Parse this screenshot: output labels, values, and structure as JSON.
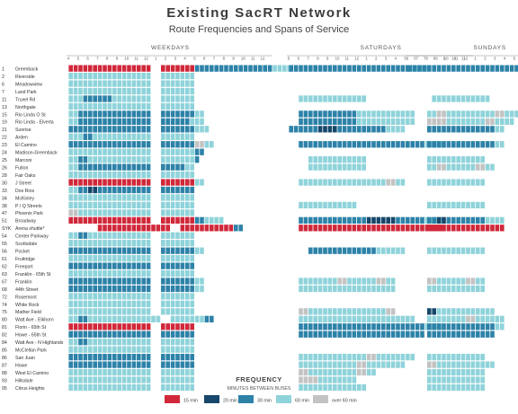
{
  "header": {
    "title": "Existing SacRT Network",
    "subtitle": "Route Frequencies and Spans of Service"
  },
  "colors": {
    "15": "#d0283a",
    "20": "#17476b",
    "30": "#2d82a8",
    "60": "#8fd3da",
    "ovr": "#c3c3c3"
  },
  "chart_data": {
    "type": "heatmap",
    "title": "Existing SacRT Network",
    "subtitle": "Route Frequencies and Spans of Service",
    "panels": [
      {
        "name": "WEEKDAYS",
        "hours": [
          "4",
          "5",
          "6",
          "7",
          "8",
          "9",
          "10",
          "11",
          "12",
          "1",
          "2",
          "3",
          "4",
          "5",
          "6",
          "7",
          "8",
          "9",
          "10",
          "11",
          "12"
        ]
      },
      {
        "name": "SATURDAYS",
        "hours": [
          "5",
          "6",
          "7",
          "8",
          "9",
          "10",
          "11",
          "12",
          "1",
          "2",
          "3",
          "4",
          "5",
          "6",
          "7",
          "8",
          "9",
          "10",
          "11"
        ]
      },
      {
        "name": "SUNDAYS",
        "hours": [
          "6",
          "7",
          "8",
          "9",
          "10",
          "11",
          "12",
          "1",
          "2",
          "3",
          "4",
          "5",
          "6",
          "7",
          "8",
          "9",
          "10"
        ]
      }
    ],
    "routes": [
      {
        "num": "1",
        "name": "Greenback",
        "wd": "8.5:15 1 3.5:15 2.5:30 5.5:30 2:60",
        "sa": "6.5:30 6:30 2:60",
        "su": "6:30 7:30 1:60"
      },
      {
        "num": "2",
        "name": "Riverside",
        "wd": "8.5:60 1 3.5:60",
        "sa": "",
        "su": ""
      },
      {
        "num": "6",
        "name": "Meadowview",
        "wd": "8.5:60 1 3.5:60",
        "sa": "",
        "su": ""
      },
      {
        "num": "7",
        "name": "Land Park",
        "wd": "8.5:60 1 3.5:60",
        "sa": "",
        "su": ""
      },
      {
        "num": "11",
        "name": "Truxel Rd",
        "wd": "1.5:60 3:30 4:60 1 3.5:60",
        "sa": "1 7:60",
        "su": "2.5 6:60"
      },
      {
        "num": "13",
        "name": "Northgate",
        "wd": "8.5:60 1 3.5:60",
        "sa": "",
        "su": ""
      },
      {
        "num": "15",
        "name": "Rio Linda O St",
        "wd": "1:60 7.5:30 1 3.5:30 1:60",
        "sa": "1 6:30 6:60",
        "su": "2 1:60 1:ovr 5:60 1:ovr 2:60"
      },
      {
        "num": "19",
        "name": "Rio Linda - Elverta",
        "wd": "1:60 7.5:30 1 3:30 0.5:60 1:60",
        "sa": "1 6:30 6:60",
        "su": "2 2:ovr 4:60 1:ovr 2:60"
      },
      {
        "num": "21",
        "name": "Sunrise",
        "wd": "8.5:30 1 3.5:30 1.5:60",
        "sa": "3:30 2:20 3:30 2:30 2:60",
        "su": "2 7:30 1:60"
      },
      {
        "num": "22",
        "name": "Arden",
        "wd": "1.5:60 1:30 6:60 1 3.5:60",
        "sa": "",
        "su": ""
      },
      {
        "num": "23",
        "name": "El Camino",
        "wd": "8.5:30 1 3.5:30 1:ovr 1:60",
        "sa": "1 7:30 6:30 2:60",
        "su": "2 7:30 1:60"
      },
      {
        "num": "24",
        "name": "Madison-Greenback",
        "wd": "8.5:60 1 3.5:60 1:30",
        "sa": "",
        "su": ""
      },
      {
        "num": "25",
        "name": "Marconi",
        "wd": "1:60 1:30 6.5:60 1 3.5:60 0.5:30",
        "sa": "2 6:60",
        "su": "2 6:60"
      },
      {
        "num": "26",
        "name": "Fulton",
        "wd": "1:60 7.5:30 1 2.5:30 1:60",
        "sa": "2 6:60",
        "su": "2 1:60 1:ovr 3:60 1:ovr 1:60"
      },
      {
        "num": "28",
        "name": "Fair Oaks",
        "wd": "1:60 7.5:60 1 3.5:60",
        "sa": "",
        "su": ""
      },
      {
        "num": "30",
        "name": "J Street",
        "wd": "8.5:15 1 3.5:15 1:60",
        "sa": "1 4:60 5:60 1:ovr 1:60",
        "su": "2 6:60"
      },
      {
        "num": "33",
        "name": "Dos Rios",
        "wd": "1:60 1:30 1:20 5.5:30 1 3.5:30",
        "sa": "",
        "su": ""
      },
      {
        "num": "34",
        "name": "McKinley",
        "wd": "8.5:60 1 3.5:60",
        "sa": "",
        "su": ""
      },
      {
        "num": "38",
        "name": "P / Q Streets",
        "wd": "1:60 7.5:60 1 3.5:60",
        "sa": "1 4:60 2:60",
        "su": "2 6:60"
      },
      {
        "num": "47",
        "name": "Phoenix Park",
        "wd": "1:ovr 7.5:60 1 3.5:60",
        "sa": "",
        "su": ""
      },
      {
        "num": "51",
        "name": "Broadway",
        "wd": "8.5:15 1 3.5:15 1:30 2:60",
        "sa": "1 7:30 1:20 2:20 3:30 2:60",
        "su": "2 1:30 1:20 2:30 2:30 2:60"
      },
      {
        "num": "SYK",
        "name": "Arena shuttle*",
        "wd": "3 5.5:15 2:15 1 5.5:15 1:30",
        "sa": "1 7:15 6:15 2:15",
        "su": "2 6:15 2:15"
      },
      {
        "num": "54",
        "name": "Center Parkway",
        "wd": "1:60 1:30 6.5:60 1 3.5:60",
        "sa": "",
        "su": ""
      },
      {
        "num": "55",
        "name": "Scottsdale",
        "wd": "8.5:60 1 3.5:60",
        "sa": "",
        "su": ""
      },
      {
        "num": "56",
        "name": "Pocket",
        "wd": "8.5:30 1 3.5:30 1:60",
        "sa": "2 7:30 3:60",
        "su": "2 6:60"
      },
      {
        "num": "61",
        "name": "Fruitridge",
        "wd": "8.5:60 1 3.5:60",
        "sa": "",
        "su": ""
      },
      {
        "num": "62",
        "name": "Freeport",
        "wd": "8.5:30 1 3.5:30",
        "sa": "",
        "su": ""
      },
      {
        "num": "63",
        "name": "Franklin - 65th St",
        "wd": "8.5:60 1 3.5:60",
        "sa": "",
        "su": ""
      },
      {
        "num": "67",
        "name": "Franklin",
        "wd": "8.5:30 1 3.5:30 1:60",
        "sa": "1 4:60 1:ovr 3:60 1:ovr 1:60",
        "su": "2 1:ovr 3:60 1:ovr 1:60"
      },
      {
        "num": "68",
        "name": "44th Street",
        "wd": "8.5:30 1 3.5:30 1:60",
        "sa": "1 4:60 4:60 2:60",
        "su": "2 6:60"
      },
      {
        "num": "72",
        "name": "Rosemont",
        "wd": "8.5:60 1 3.5:60",
        "sa": "",
        "su": ""
      },
      {
        "num": "74",
        "name": "White Rock",
        "wd": "1:60 7.5:60 1 3.5:60",
        "sa": "",
        "su": ""
      },
      {
        "num": "75",
        "name": "Mather Field",
        "wd": "8.5:60 1 3.5:60",
        "sa": "1 1:ovr 4:60 4:60 1:ovr",
        "su": "2 1:20 6:60"
      },
      {
        "num": "80",
        "name": "Watt Ave - Elkhorn",
        "wd": "1:60 1:30 7.5:60 1 3.5:60 1:30",
        "sa": "1 6:60 6:60",
        "su": "2 4:60 1:ovr 3:60"
      },
      {
        "num": "81",
        "name": "Florin - 65th St",
        "wd": "8.5:15 1 3.5:15",
        "sa": "1 7:30 6:30 2:60",
        "su": "2 7:30 1:60"
      },
      {
        "num": "82",
        "name": "Howe - 65th St",
        "wd": "8.5:30 1 3.5:30",
        "sa": "1 7:30 6:30",
        "su": "2 7:30"
      },
      {
        "num": "84",
        "name": "Watt Ave - N Highlands",
        "wd": "1:60 1:30 6.5:60 1 3.5:60",
        "sa": "",
        "su": ""
      },
      {
        "num": "85",
        "name": "McClellan Park",
        "wd": "8.5:60 1 3.5:60",
        "sa": "",
        "su": ""
      },
      {
        "num": "86",
        "name": "San Juan",
        "wd": "8.5:30 1 3.5:30",
        "sa": "1 7:60 1:ovr 4:60",
        "su": "2 6:60"
      },
      {
        "num": "87",
        "name": "Howe",
        "wd": "8.5:30 1 3.5:30",
        "sa": "1 6:60 1:ovr 4:60",
        "su": "2 1:ovr 6:60"
      },
      {
        "num": "88",
        "name": "West El Camino",
        "wd": "8.5:60 1 3.5:60",
        "sa": "1 1:ovr 5:60 1:ovr 1:60",
        "su": "2 6:60"
      },
      {
        "num": "93",
        "name": "Hillsdale",
        "wd": "8.5:60 1 3.5:60",
        "sa": "1 2:ovr 4:60",
        "su": "2 6:60"
      },
      {
        "num": "95",
        "name": "Citrus Heights",
        "wd": "8.5:60 1 3.5:60",
        "sa": "1 7:60",
        "su": "2 6:60"
      }
    ],
    "legend": {
      "title": "FREQUENCY",
      "subtitle": "MINUTES BETWEEN BUSES",
      "items": [
        {
          "key": "15",
          "label": "15 min"
        },
        {
          "key": "20",
          "label": "20 min"
        },
        {
          "key": "30",
          "label": "30 min"
        },
        {
          "key": "60",
          "label": "60 min"
        },
        {
          "key": "ovr",
          "label": "over 60 min"
        }
      ]
    }
  }
}
